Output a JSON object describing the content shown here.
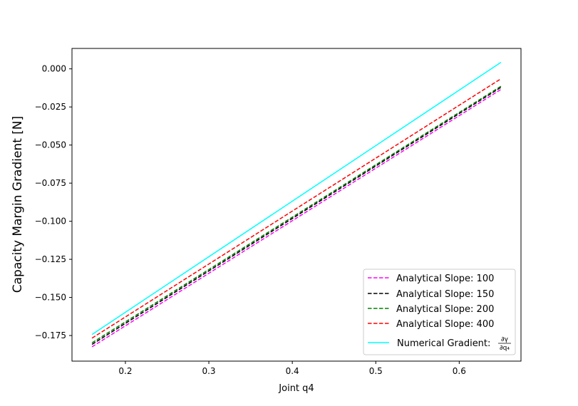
{
  "chart_data": {
    "type": "line",
    "title": "",
    "xlabel": "Joint q4",
    "ylabel": "Capacity Margin Gradient [N]",
    "xlim": [
      0.136,
      0.674
    ],
    "ylim": [
      -0.1918,
      0.0134
    ],
    "x_ticks": [
      0.2,
      0.3,
      0.4,
      0.5,
      0.6
    ],
    "x_tick_labels": [
      "0.2",
      "0.3",
      "0.4",
      "0.5",
      "0.6"
    ],
    "y_ticks": [
      0.0,
      -0.025,
      -0.05,
      -0.075,
      -0.1,
      -0.125,
      -0.15,
      -0.175
    ],
    "y_tick_labels": [
      "0.000",
      "−0.025",
      "−0.050",
      "−0.075",
      "−0.100",
      "−0.125",
      "−0.150",
      "−0.175"
    ],
    "grid": false,
    "legend_position": "lower-right",
    "series": [
      {
        "name": "Analytical Slope: 100",
        "color": "#ff00ff",
        "style": "dashed",
        "x": [
          0.16,
          0.65
        ],
        "y": [
          -0.1824,
          -0.0135
        ]
      },
      {
        "name": "Analytical Slope: 150",
        "color": "#000000",
        "style": "dashed",
        "x": [
          0.16,
          0.65
        ],
        "y": [
          -0.1808,
          -0.0121
        ]
      },
      {
        "name": "Analytical Slope: 200",
        "color": "#008000",
        "style": "dashed",
        "x": [
          0.16,
          0.65
        ],
        "y": [
          -0.1798,
          -0.0114
        ]
      },
      {
        "name": "Analytical Slope: 400",
        "color": "#ff0000",
        "style": "dashed",
        "x": [
          0.16,
          0.65
        ],
        "y": [
          -0.1767,
          -0.0065
        ]
      },
      {
        "name": "Numerical Gradient: ∂γ/∂q₄",
        "color": "#00ffff",
        "style": "solid",
        "x": [
          0.16,
          0.65
        ],
        "y": [
          -0.1743,
          0.0043
        ]
      }
    ]
  }
}
